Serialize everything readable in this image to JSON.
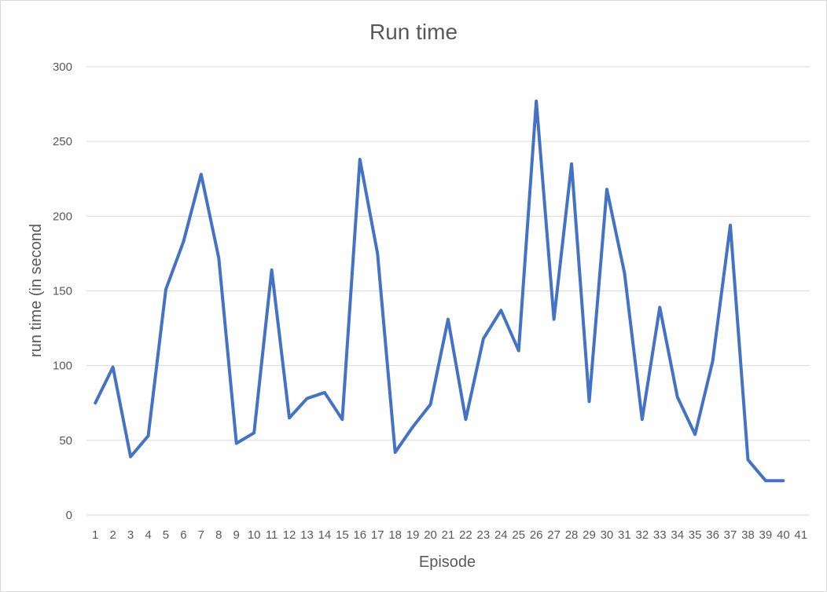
{
  "chart_data": {
    "type": "line",
    "title": "Run time",
    "xlabel": "Episode",
    "ylabel": "run time (in second",
    "ylim": [
      0,
      300
    ],
    "yticks": [
      0,
      50,
      100,
      150,
      200,
      250,
      300
    ],
    "grid": true,
    "categories": [
      "1",
      "2",
      "3",
      "4",
      "5",
      "6",
      "7",
      "8",
      "9",
      "10",
      "11",
      "12",
      "13",
      "14",
      "15",
      "16",
      "17",
      "18",
      "19",
      "20",
      "21",
      "22",
      "23",
      "24",
      "25",
      "26",
      "27",
      "28",
      "29",
      "30",
      "31",
      "32",
      "33",
      "34",
      "35",
      "36",
      "37",
      "38",
      "39",
      "40",
      "41"
    ],
    "series": [
      {
        "color": "#4472C4",
        "values": [
          75,
          99,
          39,
          53,
          151,
          183,
          228,
          172,
          48,
          55,
          164,
          65,
          78,
          82,
          64,
          238,
          175,
          42,
          59,
          74,
          131,
          64,
          118,
          137,
          110,
          277,
          131,
          235,
          76,
          218,
          162,
          64,
          139,
          79,
          54,
          103,
          194,
          37,
          23,
          23,
          null
        ]
      }
    ]
  }
}
